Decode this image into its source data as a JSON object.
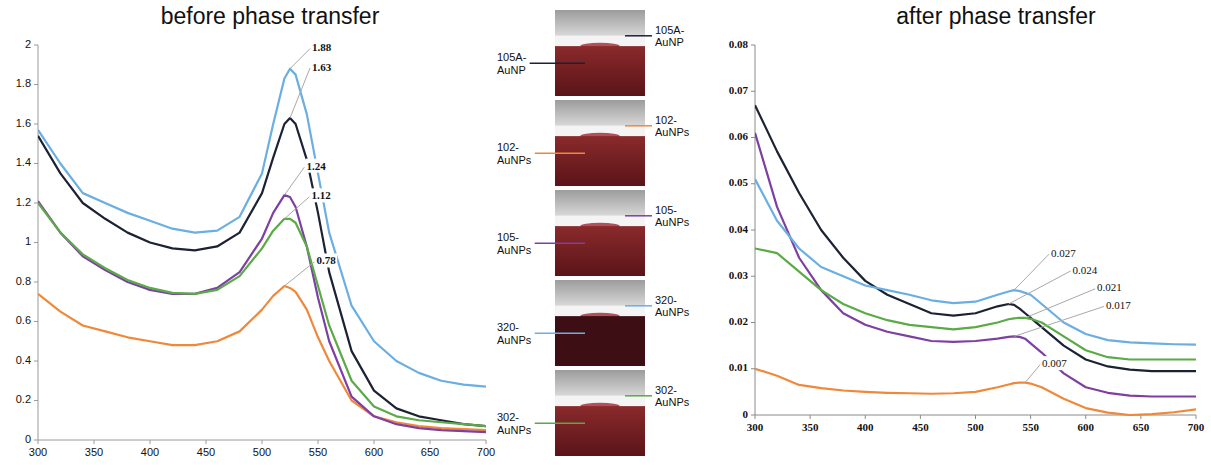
{
  "chart_data": [
    {
      "type": "line",
      "title": "before phase transfer",
      "x": [
        300,
        320,
        340,
        360,
        380,
        400,
        420,
        440,
        460,
        480,
        500,
        510,
        520,
        525,
        530,
        540,
        550,
        560,
        580,
        600,
        620,
        640,
        660,
        680,
        700
      ],
      "xlim": [
        300,
        700
      ],
      "xticks": [
        300,
        350,
        400,
        450,
        500,
        550,
        600,
        650,
        700
      ],
      "ylim": [
        0,
        2
      ],
      "yticks": [
        0,
        0.2,
        0.4,
        0.6,
        0.8,
        1,
        1.2,
        1.4,
        1.6,
        1.8,
        2
      ],
      "grid": false,
      "series": [
        {
          "name": "105A-AuNP",
          "color": "#1c2233",
          "peak": {
            "x": 525,
            "value": 1.63
          },
          "values": [
            1.54,
            1.35,
            1.2,
            1.12,
            1.05,
            1.0,
            0.97,
            0.96,
            0.98,
            1.05,
            1.25,
            1.43,
            1.6,
            1.63,
            1.6,
            1.42,
            1.15,
            0.85,
            0.45,
            0.25,
            0.16,
            0.12,
            0.1,
            0.08,
            0.07
          ]
        },
        {
          "name": "102-AuNPs",
          "color": "#f0883a",
          "peak": {
            "x": 520,
            "value": 0.78
          },
          "values": [
            0.74,
            0.65,
            0.58,
            0.55,
            0.52,
            0.5,
            0.48,
            0.48,
            0.5,
            0.55,
            0.66,
            0.73,
            0.78,
            0.77,
            0.75,
            0.66,
            0.52,
            0.4,
            0.2,
            0.12,
            0.09,
            0.07,
            0.06,
            0.055,
            0.05
          ]
        },
        {
          "name": "105-AuNPs",
          "color": "#7e3fa3",
          "peak": {
            "x": 520,
            "value": 1.24
          },
          "values": [
            1.21,
            1.05,
            0.93,
            0.86,
            0.8,
            0.76,
            0.74,
            0.74,
            0.77,
            0.85,
            1.02,
            1.15,
            1.24,
            1.23,
            1.18,
            0.98,
            0.72,
            0.5,
            0.22,
            0.12,
            0.08,
            0.06,
            0.05,
            0.045,
            0.04
          ]
        },
        {
          "name": "320-AuNPs",
          "color": "#6aaee2",
          "peak": {
            "x": 525,
            "value": 1.88
          },
          "values": [
            1.57,
            1.4,
            1.25,
            1.2,
            1.15,
            1.11,
            1.07,
            1.05,
            1.06,
            1.13,
            1.35,
            1.6,
            1.83,
            1.88,
            1.85,
            1.65,
            1.35,
            1.05,
            0.68,
            0.5,
            0.4,
            0.34,
            0.3,
            0.28,
            0.27
          ]
        },
        {
          "name": "302-AuNPs",
          "color": "#5aaa46",
          "peak": {
            "x": 520,
            "value": 1.12
          },
          "values": [
            1.2,
            1.05,
            0.94,
            0.87,
            0.81,
            0.77,
            0.745,
            0.74,
            0.76,
            0.83,
            0.97,
            1.06,
            1.12,
            1.12,
            1.1,
            0.98,
            0.78,
            0.58,
            0.3,
            0.17,
            0.12,
            0.1,
            0.09,
            0.08,
            0.07
          ]
        }
      ]
    },
    {
      "type": "line",
      "title": "after phase transfer",
      "x": [
        300,
        320,
        340,
        360,
        380,
        400,
        420,
        440,
        460,
        480,
        500,
        520,
        530,
        535,
        540,
        545,
        550,
        560,
        580,
        600,
        620,
        640,
        660,
        680,
        700
      ],
      "xlim": [
        300,
        700
      ],
      "xticks": [
        300,
        350,
        400,
        450,
        500,
        550,
        600,
        650,
        700
      ],
      "ylim": [
        0,
        0.08
      ],
      "yticks": [
        0,
        0.01,
        0.02,
        0.03,
        0.04,
        0.05,
        0.06,
        0.07,
        0.08
      ],
      "grid": false,
      "series": [
        {
          "name": "105A-AuNP",
          "color": "#1c2233",
          "peak": {
            "x": 530,
            "value": 0.024
          },
          "values": [
            0.067,
            0.057,
            0.048,
            0.04,
            0.034,
            0.029,
            0.026,
            0.024,
            0.022,
            0.0215,
            0.022,
            0.0235,
            0.024,
            0.0238,
            0.023,
            0.022,
            0.021,
            0.019,
            0.015,
            0.012,
            0.0105,
            0.0098,
            0.0095,
            0.0095,
            0.0095
          ]
        },
        {
          "name": "102-AuNPs",
          "color": "#f0883a",
          "peak": {
            "x": 545,
            "value": 0.007
          },
          "values": [
            0.01,
            0.0085,
            0.0065,
            0.0058,
            0.0053,
            0.005,
            0.0048,
            0.0047,
            0.0046,
            0.0047,
            0.005,
            0.006,
            0.0066,
            0.0069,
            0.007,
            0.007,
            0.0068,
            0.006,
            0.0035,
            0.0015,
            0.0005,
            0,
            0.0002,
            0.0006,
            0.0012
          ]
        },
        {
          "name": "105-AuNPs",
          "color": "#7e3fa3",
          "peak": {
            "x": 535,
            "value": 0.017
          },
          "values": [
            0.061,
            0.045,
            0.034,
            0.027,
            0.022,
            0.0195,
            0.018,
            0.017,
            0.016,
            0.0158,
            0.016,
            0.0165,
            0.0169,
            0.017,
            0.0169,
            0.0165,
            0.0155,
            0.0135,
            0.009,
            0.006,
            0.0048,
            0.0042,
            0.004,
            0.004,
            0.004
          ]
        },
        {
          "name": "320-AuNPs",
          "color": "#6aaee2",
          "peak": {
            "x": 535,
            "value": 0.027
          },
          "values": [
            0.051,
            0.042,
            0.036,
            0.032,
            0.03,
            0.028,
            0.027,
            0.026,
            0.0248,
            0.0242,
            0.0245,
            0.026,
            0.0267,
            0.027,
            0.0268,
            0.0264,
            0.026,
            0.024,
            0.02,
            0.0175,
            0.0162,
            0.0157,
            0.0155,
            0.0153,
            0.0152
          ]
        },
        {
          "name": "302-AuNPs",
          "color": "#5aaa46",
          "peak": {
            "x": 545,
            "value": 0.021
          },
          "values": [
            0.036,
            0.035,
            0.031,
            0.027,
            0.024,
            0.022,
            0.0205,
            0.0195,
            0.019,
            0.0185,
            0.019,
            0.02,
            0.0207,
            0.0209,
            0.021,
            0.021,
            0.0208,
            0.02,
            0.017,
            0.014,
            0.0125,
            0.012,
            0.012,
            0.012,
            0.012
          ]
        }
      ]
    }
  ]
}
